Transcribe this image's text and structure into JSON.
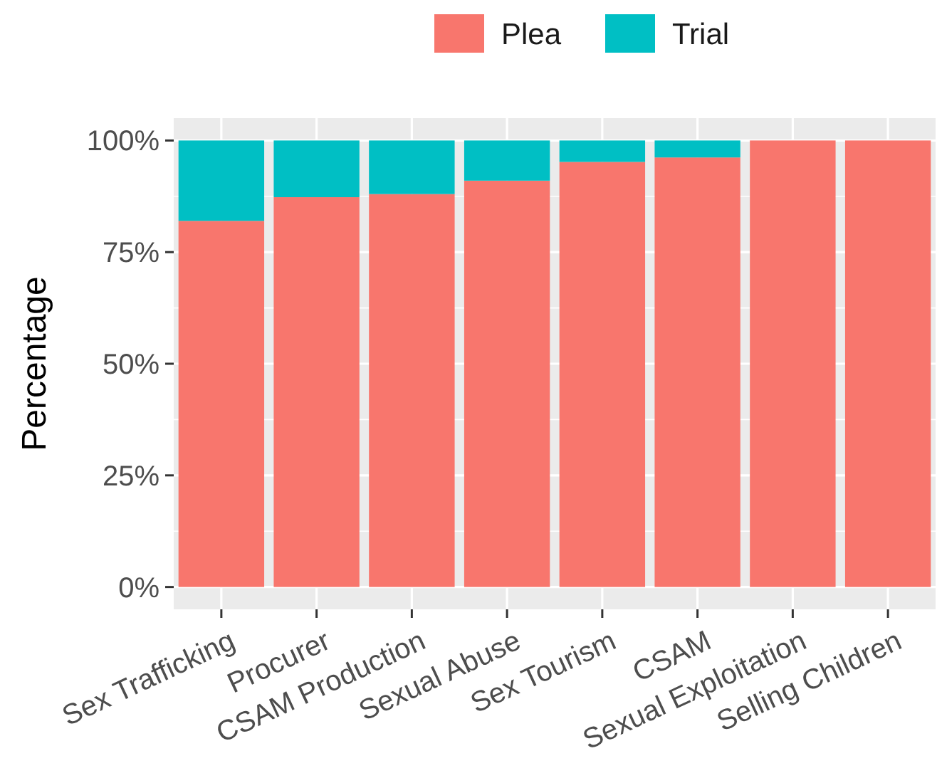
{
  "chart_data": {
    "type": "bar",
    "ylabel": "Percentage",
    "stacked": true,
    "legend": "top",
    "grid": true,
    "categories": [
      "Sex Trafficking",
      "Procurer",
      "CSAM Production",
      "Sexual Abuse",
      "Sex Tourism",
      "CSAM",
      "Sexual Exploitation",
      "Selling Children"
    ],
    "series": [
      {
        "name": "Plea",
        "color": "#f8766d",
        "values": [
          82,
          87.3,
          88,
          91,
          95.2,
          96.2,
          100,
          100
        ]
      },
      {
        "name": "Trial",
        "color": "#00bfc4",
        "values": [
          18,
          12.7,
          12,
          9,
          4.8,
          3.8,
          0,
          0
        ]
      }
    ],
    "ylim": [
      -5,
      105
    ],
    "yticks": [
      {
        "value": 0,
        "label": "0%"
      },
      {
        "value": 25,
        "label": "25%"
      },
      {
        "value": 50,
        "label": "50%"
      },
      {
        "value": 75,
        "label": "75%"
      },
      {
        "value": 100,
        "label": "100%"
      }
    ]
  }
}
